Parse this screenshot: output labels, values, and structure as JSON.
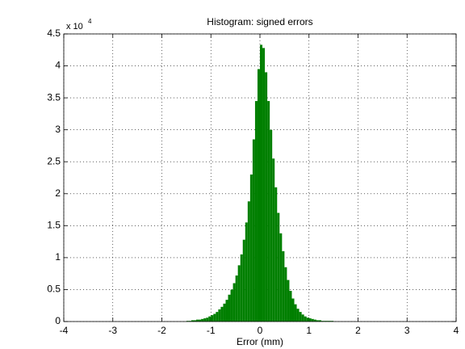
{
  "chart_data": {
    "type": "histogram",
    "title": "Histogram: signed errors",
    "x_label": "Error (mm)",
    "y_multiplier": {
      "base": "x 10",
      "exponent": "4"
    },
    "bins": [
      -1.5,
      -1.45,
      -1.4,
      -1.35,
      -1.3,
      -1.25,
      -1.2,
      -1.15,
      -1.1,
      -1.05,
      -1.0,
      -0.95,
      -0.9,
      -0.85,
      -0.8,
      -0.75,
      -0.7,
      -0.65,
      -0.6,
      -0.55,
      -0.5,
      -0.45,
      -0.4,
      -0.35,
      -0.3,
      -0.25,
      -0.2,
      -0.15,
      -0.1,
      -0.05,
      0,
      0.05,
      0.1,
      0.15,
      0.2,
      0.25,
      0.3,
      0.35,
      0.4,
      0.45,
      0.5,
      0.55,
      0.6,
      0.65,
      0.7,
      0.75,
      0.8,
      0.85,
      0.9,
      0.95,
      1.0,
      1.05,
      1.1,
      1.15,
      1.2,
      1.25,
      1.3,
      1.35,
      1.4,
      1.45,
      1.5
    ],
    "counts": [
      0.01,
      0.01,
      0.02,
      0.02,
      0.03,
      0.03,
      0.04,
      0.05,
      0.06,
      0.08,
      0.1,
      0.12,
      0.15,
      0.19,
      0.23,
      0.28,
      0.34,
      0.42,
      0.5,
      0.6,
      0.72,
      0.88,
      1.05,
      1.28,
      1.55,
      1.88,
      2.3,
      2.85,
      3.45,
      3.95,
      4.33,
      4.28,
      3.9,
      3.45,
      3.0,
      2.55,
      2.1,
      1.7,
      1.38,
      1.1,
      0.85,
      0.65,
      0.48,
      0.36,
      0.27,
      0.2,
      0.15,
      0.11,
      0.08,
      0.06,
      0.05,
      0.04,
      0.03,
      0.02,
      0.02,
      0.01,
      0.01,
      0.01,
      0.01,
      0.01
    ],
    "color": "#007f00",
    "xlim": [
      -4,
      4
    ],
    "xticks": [
      -4,
      -3,
      -2,
      -1,
      0,
      1,
      2,
      3,
      4
    ],
    "ylim": [
      0,
      4.5
    ],
    "yticks": [
      0,
      0.5,
      1,
      1.5,
      2,
      2.5,
      3,
      3.5,
      4,
      4.5
    ],
    "grid": true
  }
}
